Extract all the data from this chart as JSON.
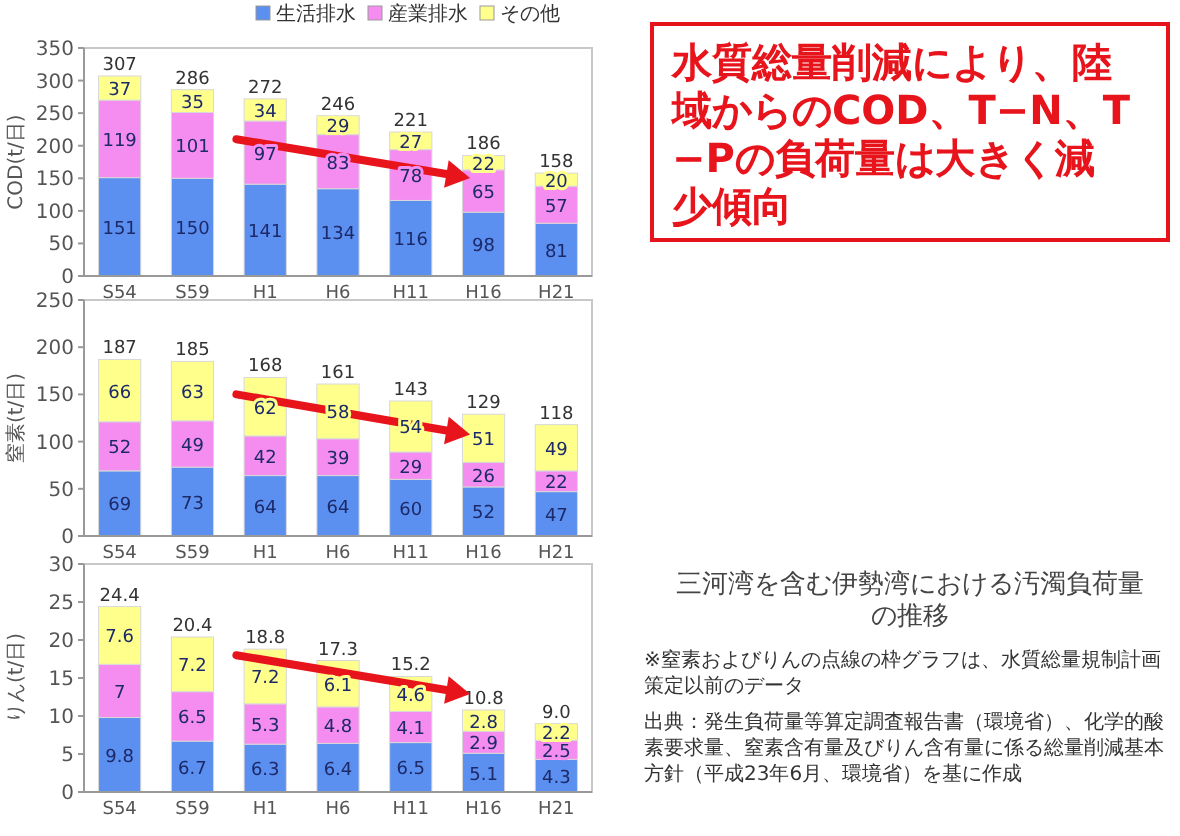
{
  "chart_data": [
    {
      "type": "bar",
      "stacked": true,
      "ylabel": "COD(t/日)",
      "categories": [
        "S54",
        "S59",
        "H1",
        "H6",
        "H11",
        "H16",
        "H21"
      ],
      "ylim": [
        0,
        350
      ],
      "yticks": [
        0,
        50,
        100,
        150,
        200,
        250,
        300,
        350
      ],
      "legend": "top right",
      "data_labels": true,
      "series": [
        {
          "name": "生活排水",
          "color": "#5b8ff0",
          "values": [
            151,
            150,
            141,
            134,
            116,
            98,
            81
          ]
        },
        {
          "name": "産業排水",
          "color": "#f58cf0",
          "values": [
            119,
            101,
            97,
            83,
            78,
            65,
            57
          ]
        },
        {
          "name": "その他",
          "color": "#ffff8c",
          "values": [
            37,
            35,
            34,
            29,
            27,
            22,
            20
          ]
        }
      ],
      "totals": [
        "307",
        "286",
        "272",
        "246",
        "221",
        "186",
        "158"
      ],
      "annotations": [
        "水質総量削減により、陸域からのCOD、T−N、T−Pの負荷量は大きく減少傾向"
      ]
    },
    {
      "type": "bar",
      "stacked": true,
      "ylabel": "窒素(t/日)",
      "categories": [
        "S54",
        "S59",
        "H1",
        "H6",
        "H11",
        "H16",
        "H21"
      ],
      "ylim": [
        0,
        250
      ],
      "yticks": [
        0,
        50,
        100,
        150,
        200,
        250
      ],
      "data_labels": true,
      "series": [
        {
          "color": "#5b8ff0",
          "values": [
            69,
            73,
            64,
            64,
            60,
            52,
            47
          ]
        },
        {
          "color": "#f58cf0",
          "values": [
            52,
            49,
            42,
            39,
            29,
            26,
            22
          ]
        },
        {
          "color": "#ffff8c",
          "values": [
            66,
            63,
            62,
            58,
            54,
            51,
            49
          ]
        }
      ],
      "totals": [
        "187",
        "185",
        "168",
        "161",
        "143",
        "129",
        "118"
      ]
    },
    {
      "type": "bar",
      "stacked": true,
      "ylabel": "りん(t/日)",
      "categories": [
        "S54",
        "S59",
        "H1",
        "H6",
        "H11",
        "H16",
        "H21"
      ],
      "ylim": [
        0,
        30
      ],
      "yticks": [
        0,
        5,
        10,
        15,
        20,
        25,
        30
      ],
      "data_labels": true,
      "series": [
        {
          "color": "#5b8ff0",
          "values": [
            9.8,
            6.7,
            6.3,
            6.4,
            6.5,
            5.1,
            4.3
          ]
        },
        {
          "color": "#f58cf0",
          "values": [
            7.0,
            6.5,
            5.3,
            4.8,
            4.1,
            2.9,
            2.5
          ]
        },
        {
          "color": "#ffff8c",
          "values": [
            7.6,
            7.2,
            7.2,
            6.1,
            4.6,
            2.8,
            2.2
          ]
        }
      ],
      "totals": [
        "24.4",
        "20.4",
        "18.8",
        "17.3",
        "15.2",
        "10.8",
        "9.0"
      ],
      "annotations": [
        "三河湾を含む伊勢湾における汚濁負荷量の推移",
        "※窒素およびりんの点線の枠グラフは、水質総量規制計画策定以前のデータ",
        "出典：発生負荷量等算定調査報告書（環境省）、化学的酸素要求量、窒素含有量及びりん含有量に係る総量削減基本方針（平成23年6月、環境省）を基に作成"
      ]
    }
  ]
}
